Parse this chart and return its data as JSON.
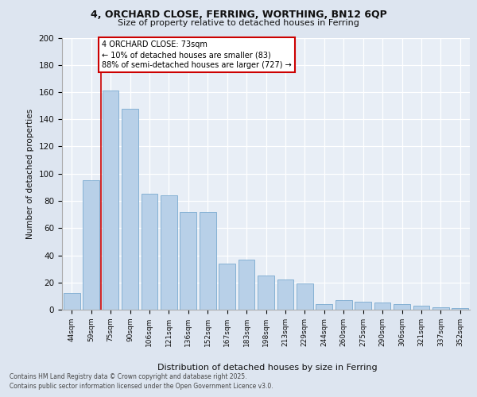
{
  "title1": "4, ORCHARD CLOSE, FERRING, WORTHING, BN12 6QP",
  "title2": "Size of property relative to detached houses in Ferring",
  "xlabel": "Distribution of detached houses by size in Ferring",
  "ylabel": "Number of detached properties",
  "categories": [
    "44sqm",
    "59sqm",
    "75sqm",
    "90sqm",
    "106sqm",
    "121sqm",
    "136sqm",
    "152sqm",
    "167sqm",
    "183sqm",
    "198sqm",
    "213sqm",
    "229sqm",
    "244sqm",
    "260sqm",
    "275sqm",
    "290sqm",
    "306sqm",
    "321sqm",
    "337sqm",
    "352sqm"
  ],
  "values": [
    12,
    95,
    161,
    148,
    85,
    84,
    72,
    72,
    34,
    37,
    25,
    22,
    19,
    4,
    7,
    6,
    5,
    4,
    3,
    2,
    1
  ],
  "bar_color": "#b8d0e8",
  "bar_edge_color": "#7aaad0",
  "annotation_text": "4 ORCHARD CLOSE: 73sqm\n← 10% of detached houses are smaller (83)\n88% of semi-detached houses are larger (727) →",
  "annotation_box_color": "#ffffff",
  "annotation_box_edge": "#cc0000",
  "vline_color": "#cc0000",
  "footer1": "Contains HM Land Registry data © Crown copyright and database right 2025.",
  "footer2": "Contains public sector information licensed under the Open Government Licence v3.0.",
  "bg_color": "#dde5f0",
  "plot_bg_color": "#e8eef6",
  "ylim_max": 200,
  "yticks": [
    0,
    20,
    40,
    60,
    80,
    100,
    120,
    140,
    160,
    180,
    200
  ]
}
